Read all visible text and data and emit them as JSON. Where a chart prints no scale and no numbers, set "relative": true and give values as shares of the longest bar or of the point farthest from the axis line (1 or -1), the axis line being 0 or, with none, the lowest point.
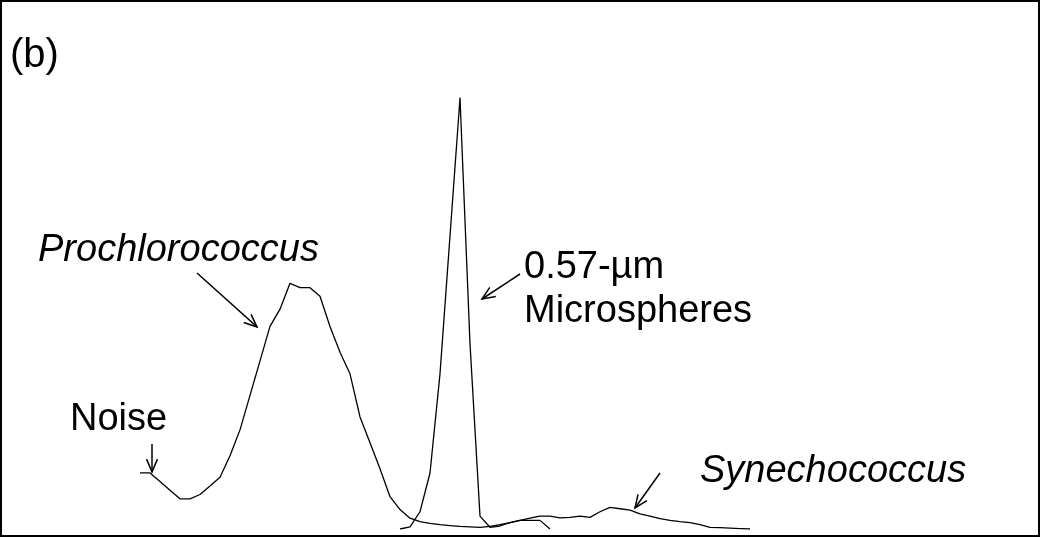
{
  "chart_data": {
    "type": "line",
    "relative": true,
    "marker": "none",
    "categories": [
      null,
      null,
      null,
      null,
      null,
      null,
      null,
      null,
      null,
      null,
      null,
      null,
      null,
      null,
      null,
      null,
      null,
      null,
      null,
      null,
      null,
      null,
      null,
      null,
      null,
      null,
      null,
      null,
      null,
      null,
      null,
      null,
      null,
      null,
      null,
      null,
      null,
      null,
      null,
      null,
      null,
      null,
      null,
      null,
      null,
      null,
      null,
      null,
      null,
      null,
      null,
      null,
      null,
      null,
      null,
      null,
      null,
      null,
      null,
      null,
      null,
      null
    ],
    "series": [
      {
        "color": "#000000",
        "values": [
          0.13,
          0.13,
          0.11,
          0.09,
          0.07,
          0.07,
          0.08,
          0.1,
          0.12,
          0.17,
          0.23,
          0.31,
          0.39,
          0.47,
          0.51,
          0.57,
          0.56,
          0.56,
          0.54,
          0.47,
          0.41,
          0.36,
          0.26,
          0.2,
          0.14,
          0.075,
          0.045,
          0.025,
          0.017,
          0.013,
          0.01,
          0.008,
          0.006,
          0.005,
          0.004,
          0.006,
          0.01,
          0.015,
          0.02,
          0.025,
          0.03,
          0.03,
          0.026,
          0.027,
          0.03,
          0.027,
          0.04,
          0.05,
          0.047,
          0.044,
          0.035,
          0.03,
          0.024,
          0.02,
          0.017,
          0.015,
          0.01,
          0.004,
          0.003,
          0.002,
          0.001,
          0
        ]
      },
      {
        "color": "#000000",
        "values": [
          null,
          null,
          null,
          null,
          null,
          null,
          null,
          null,
          null,
          null,
          null,
          null,
          null,
          null,
          null,
          null,
          null,
          null,
          null,
          null,
          null,
          null,
          null,
          null,
          null,
          null,
          0,
          0.005,
          0.04,
          0.13,
          0.36,
          0.68,
          1,
          0.43,
          0.03,
          0.004,
          0.007,
          0.015,
          0.02,
          0.02,
          0.02,
          0,
          null,
          null,
          null,
          null,
          null,
          null,
          null,
          null,
          null,
          null,
          null,
          null,
          null,
          null,
          null,
          null,
          null,
          null,
          null,
          null
        ]
      }
    ],
    "annotations": [
      "(b)",
      "Prochlorococcus",
      "0.57-µm Microspheres",
      "Noise",
      "Synechococcus"
    ]
  }
}
